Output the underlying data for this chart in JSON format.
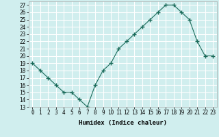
{
  "x": [
    0,
    1,
    2,
    3,
    4,
    5,
    6,
    7,
    8,
    9,
    10,
    11,
    12,
    13,
    14,
    15,
    16,
    17,
    18,
    19,
    20,
    21,
    22,
    23
  ],
  "y": [
    19,
    18,
    17,
    16,
    15,
    15,
    14,
    13,
    16,
    18,
    19,
    21,
    22,
    23,
    24,
    25,
    26,
    27,
    27,
    26,
    25,
    22,
    20,
    20
  ],
  "line_color": "#1a6b5a",
  "marker": "+",
  "marker_size": 4,
  "bg_color": "#d0eeee",
  "grid_color": "#ffffff",
  "xlabel": "Humidex (Indice chaleur)",
  "xlim": [
    -0.5,
    23.5
  ],
  "ylim": [
    13,
    27.5
  ],
  "yticks": [
    13,
    14,
    15,
    16,
    17,
    18,
    19,
    20,
    21,
    22,
    23,
    24,
    25,
    26,
    27
  ],
  "xticks": [
    0,
    1,
    2,
    3,
    4,
    5,
    6,
    7,
    8,
    9,
    10,
    11,
    12,
    13,
    14,
    15,
    16,
    17,
    18,
    19,
    20,
    21,
    22,
    23
  ],
  "label_fontsize": 6.5,
  "tick_fontsize": 5.5
}
